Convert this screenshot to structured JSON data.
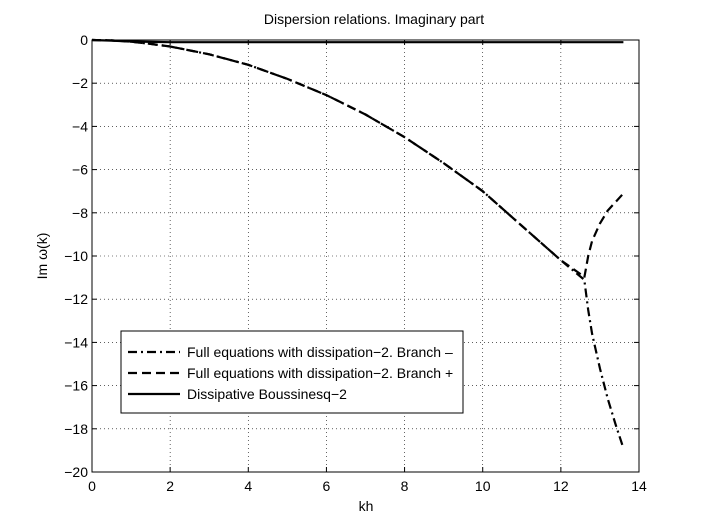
{
  "chart_data": {
    "type": "line",
    "title": "Dispersion relations. Imaginary part",
    "xlabel": "kh",
    "ylabel": "Im ω(k)",
    "xlim": [
      0,
      14
    ],
    "ylim": [
      -20,
      0
    ],
    "xticks": [
      "0",
      "2",
      "4",
      "6",
      "8",
      "10",
      "12",
      "14"
    ],
    "yticks": [
      "0",
      "−2",
      "−4",
      "−6",
      "−8",
      "−10",
      "−12",
      "−14",
      "−16",
      "−18",
      "−20"
    ],
    "grid": true,
    "legend_position": "lower-left",
    "series": [
      {
        "name": "Full equations with dissipation−2. Branch –",
        "style": "dashdot",
        "color": "#000000",
        "x": [
          0,
          0.5,
          1,
          1.5,
          2,
          3,
          4,
          5,
          6,
          7,
          8,
          9,
          10,
          11,
          12,
          12.6,
          12.7,
          12.8,
          13.0,
          13.2,
          13.4,
          13.6
        ],
        "y": [
          0,
          -0.02,
          -0.08,
          -0.18,
          -0.3,
          -0.66,
          -1.15,
          -1.8,
          -2.55,
          -3.45,
          -4.5,
          -5.7,
          -7.0,
          -8.6,
          -10.2,
          -11.1,
          -12.5,
          -13.6,
          -15.2,
          -16.6,
          -17.8,
          -18.9
        ]
      },
      {
        "name": "Full equations with dissipation−2. Branch +",
        "style": "dashed",
        "color": "#000000",
        "x": [
          0,
          0.5,
          1,
          1.5,
          2,
          3,
          4,
          5,
          6,
          7,
          8,
          9,
          10,
          11,
          12,
          12.55,
          12.6,
          12.7,
          12.8,
          13.0,
          13.2,
          13.4,
          13.6
        ],
        "y": [
          0,
          -0.02,
          -0.08,
          -0.18,
          -0.3,
          -0.66,
          -1.15,
          -1.8,
          -2.55,
          -3.45,
          -4.5,
          -5.7,
          -7.0,
          -8.6,
          -10.2,
          -10.9,
          -11.0,
          -10.0,
          -9.3,
          -8.5,
          -7.9,
          -7.5,
          -7.1
        ]
      },
      {
        "name": "Dissipative Boussinesq−2",
        "style": "solid",
        "color": "#000000",
        "x": [
          0,
          0.5,
          1,
          2,
          4,
          6,
          8,
          10,
          12,
          13.6
        ],
        "y": [
          0,
          -0.03,
          -0.07,
          -0.1,
          -0.1,
          -0.1,
          -0.1,
          -0.1,
          -0.1,
          -0.1
        ]
      }
    ]
  }
}
